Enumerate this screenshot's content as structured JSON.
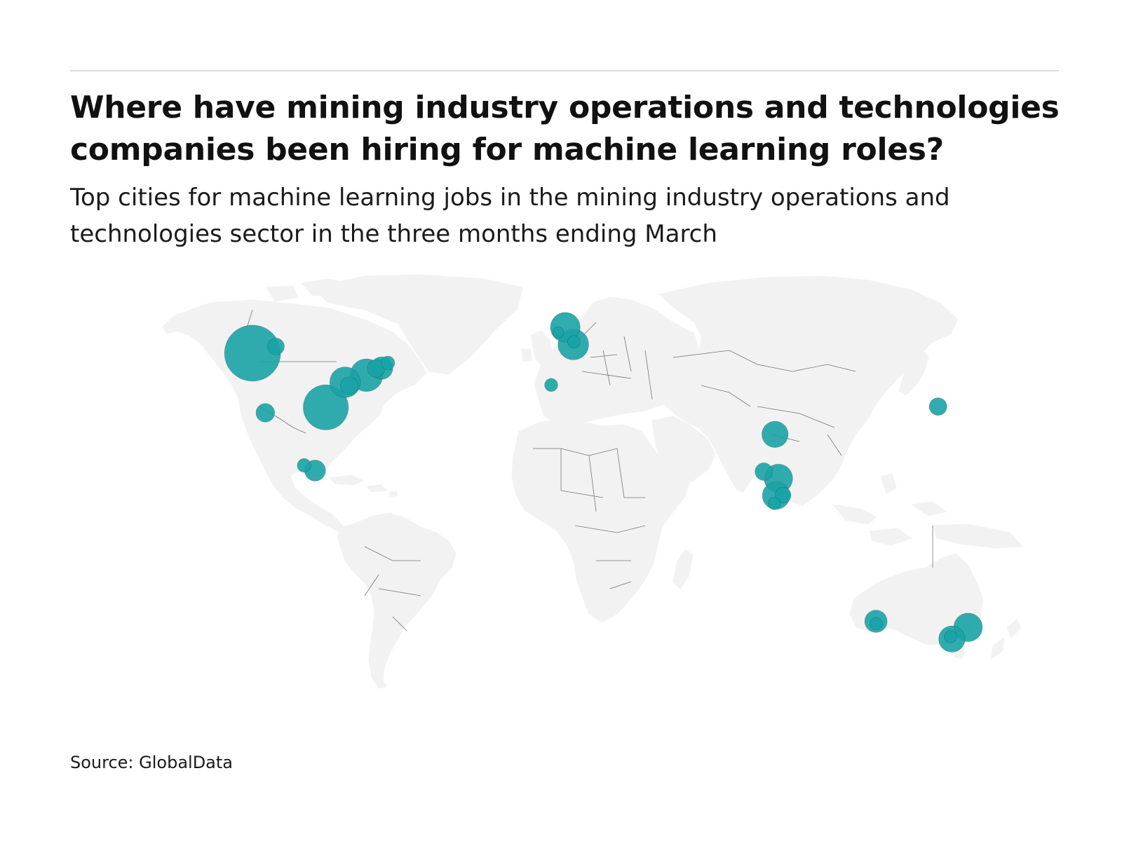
{
  "header": {
    "title": "Where have mining industry operations and technologies companies been hiring for machine learning roles?",
    "subtitle": "Top cities for machine learning jobs in the mining industry operations and technologies sector in the three months ending March"
  },
  "footer": {
    "source": "Source: GlobalData"
  },
  "style": {
    "bubble_color": "#1aa3a6",
    "land_color": "#f2f2f2",
    "border_color": "#4a4a4a"
  },
  "chart_data": {
    "type": "bubble-map",
    "projection": "equirectangular-like world",
    "legend": "none",
    "points": [
      {
        "lon": -123.1,
        "lat": 49.3,
        "size": 10
      },
      {
        "lon": -114.1,
        "lat": 51.0,
        "size": 0.9
      },
      {
        "lon": -79.4,
        "lat": 43.7,
        "size": 3.4
      },
      {
        "lon": -75.7,
        "lat": 45.4,
        "size": 1.0
      },
      {
        "lon": -71.2,
        "lat": 46.8,
        "size": 0.6
      },
      {
        "lon": -73.6,
        "lat": 45.5,
        "size": 1.6
      },
      {
        "lon": -87.6,
        "lat": 41.9,
        "size": 3.0
      },
      {
        "lon": -86.0,
        "lat": 41.0,
        "size": 1.0
      },
      {
        "lon": -95.0,
        "lat": 35.5,
        "size": 6.5
      },
      {
        "lon": -118.2,
        "lat": 34.1,
        "size": 1.1
      },
      {
        "lon": -103.3,
        "lat": 20.7,
        "size": 0.6
      },
      {
        "lon": -99.1,
        "lat": 19.4,
        "size": 1.4
      },
      {
        "lon": -3.2,
        "lat": 55.9,
        "size": 2.8
      },
      {
        "lon": -0.1,
        "lat": 51.5,
        "size": 3.0
      },
      {
        "lon": 0.1,
        "lat": 52.2,
        "size": 0.5
      },
      {
        "lon": -5.9,
        "lat": 54.6,
        "size": 0.4
      },
      {
        "lon": -8.6,
        "lat": 41.2,
        "size": 0.55
      },
      {
        "lon": 77.2,
        "lat": 28.6,
        "size": 2.2
      },
      {
        "lon": 72.9,
        "lat": 19.1,
        "size": 1.0
      },
      {
        "lon": 78.5,
        "lat": 17.4,
        "size": 2.6
      },
      {
        "lon": 77.6,
        "lat": 13.0,
        "size": 2.4
      },
      {
        "lon": 80.3,
        "lat": 13.1,
        "size": 0.8
      },
      {
        "lon": 76.9,
        "lat": 11.0,
        "size": 0.5
      },
      {
        "lon": 139.7,
        "lat": 35.7,
        "size": 1.0
      },
      {
        "lon": 115.9,
        "lat": -31.9,
        "size": 1.6
      },
      {
        "lon": 116.0,
        "lat": -32.7,
        "size": 0.5
      },
      {
        "lon": 151.2,
        "lat": -33.9,
        "size": 2.6
      },
      {
        "lon": 145.0,
        "lat": -37.8,
        "size": 2.2
      },
      {
        "lon": 144.5,
        "lat": -37.0,
        "size": 0.5
      }
    ]
  }
}
